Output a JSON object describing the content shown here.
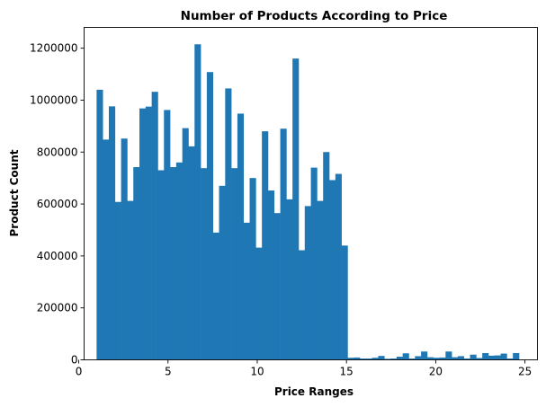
{
  "chart_data": {
    "type": "bar",
    "title": "Number of Products According to Price",
    "xlabel": "Price Ranges",
    "ylabel": "Product Count",
    "xlim": [
      0.3,
      25.7
    ],
    "ylim": [
      0,
      1280000
    ],
    "xticks": [
      0,
      5,
      10,
      15,
      20,
      25
    ],
    "yticks": [
      0,
      200000,
      400000,
      600000,
      800000,
      1000000,
      1200000
    ],
    "grid": false,
    "legend": "none",
    "color": "#1f77b4",
    "bin_start": 1.0,
    "bin_width": 0.343,
    "values": [
      1040000,
      848000,
      976000,
      608000,
      852000,
      612000,
      742000,
      968000,
      975000,
      1032000,
      730000,
      962000,
      742000,
      760000,
      892000,
      822000,
      1215000,
      738000,
      1108000,
      490000,
      670000,
      1045000,
      738000,
      948000,
      528000,
      700000,
      432000,
      880000,
      652000,
      565000,
      890000,
      618000,
      1160000,
      422000,
      592000,
      740000,
      612000,
      800000,
      692000,
      716000,
      440000,
      8000,
      9000,
      5000,
      5000,
      8000,
      15000,
      4000,
      5000,
      12000,
      25000,
      5000,
      14000,
      32000,
      10000,
      8000,
      9000,
      32000,
      10000,
      14000,
      5000,
      20000,
      7000,
      26000,
      16000,
      17000,
      24000,
      5000,
      26000
    ]
  }
}
